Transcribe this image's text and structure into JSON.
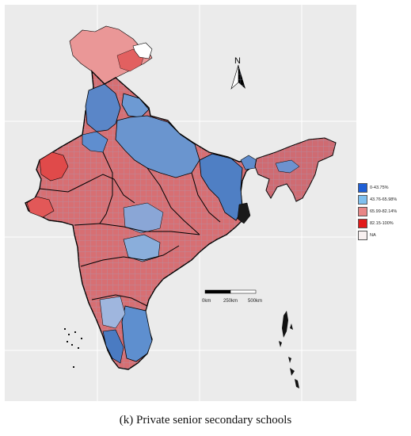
{
  "map": {
    "north_label": "N",
    "scale_labels": [
      "0km",
      "250km",
      "500km"
    ]
  },
  "legend": {
    "items": [
      {
        "label": "0-43.75%",
        "color": "#1f5fd6"
      },
      {
        "label": "43.76-65.98%",
        "color": "#7fc0ef"
      },
      {
        "label": "65.99-82.14%",
        "color": "#e88686"
      },
      {
        "label": "82.15-100%",
        "color": "#e21a1a"
      },
      {
        "label": "NA",
        "color": "#f8f0f0"
      }
    ]
  },
  "caption": "(k) Private senior secondary schools"
}
